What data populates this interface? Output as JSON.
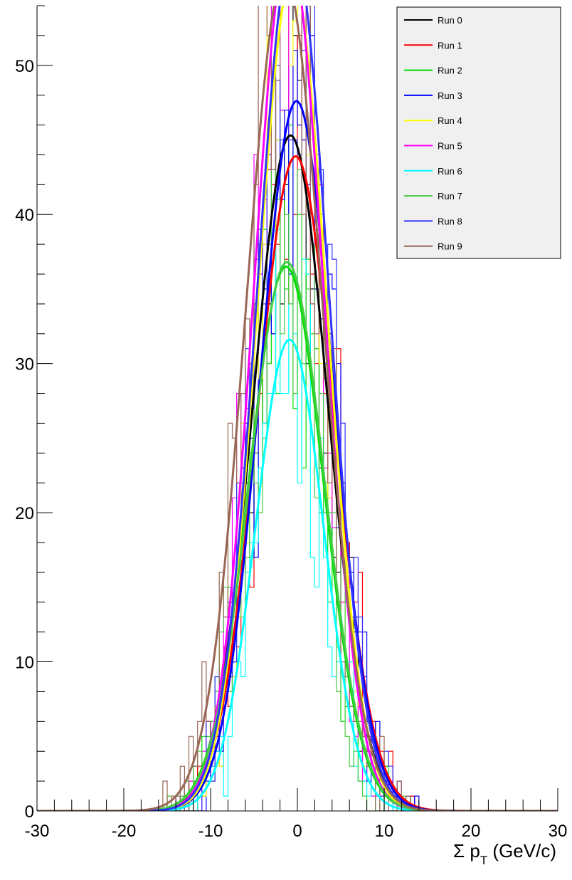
{
  "chart_data": {
    "type": "line",
    "xlabel": "Σ p_T (GeV/c)",
    "xlim": [
      -30,
      30
    ],
    "ylim": [
      0,
      54
    ],
    "x_ticks": [
      "-30",
      "-20",
      "-10",
      "0",
      "10",
      "20",
      "30"
    ],
    "y_ticks": [
      "0",
      "10",
      "20",
      "30",
      "40",
      "50"
    ],
    "legend_position": "top-right",
    "series": [
      {
        "name": "Run 0",
        "color": "#000000",
        "mean": -0.8,
        "sigma": 4.3,
        "peak": 45.3,
        "seed": 11
      },
      {
        "name": "Run 1",
        "color": "#ff0000",
        "mean": -0.2,
        "sigma": 4.4,
        "peak": 43.9,
        "seed": 23
      },
      {
        "name": "Run 2",
        "color": "#00dd00",
        "mean": -1.3,
        "sigma": 4.3,
        "peak": 36.5,
        "seed": 37
      },
      {
        "name": "Run 3",
        "color": "#0000ff",
        "mean": -0.1,
        "sigma": 4.2,
        "peak": 47.6,
        "seed": 41
      },
      {
        "name": "Run 4",
        "color": "#ffff00",
        "mean": -0.6,
        "sigma": 4.0,
        "peak": 56.0,
        "seed": 53
      },
      {
        "name": "Run 5",
        "color": "#ff00ff",
        "mean": -1.0,
        "sigma": 4.0,
        "peak": 58.0,
        "seed": 67
      },
      {
        "name": "Run 6",
        "color": "#00ffff",
        "mean": -0.9,
        "sigma": 3.9,
        "peak": 31.6,
        "seed": 71
      },
      {
        "name": "Run 7",
        "color": "#44cc44",
        "mean": -1.2,
        "sigma": 4.3,
        "peak": 36.8,
        "seed": 83
      },
      {
        "name": "Run 8",
        "color": "#3333ff",
        "mean": -0.5,
        "sigma": 4.1,
        "peak": 58.0,
        "seed": 97
      },
      {
        "name": "Run 9",
        "color": "#996655",
        "mean": -1.5,
        "sigma": 4.4,
        "peak": 56.0,
        "seed": 101
      }
    ]
  }
}
